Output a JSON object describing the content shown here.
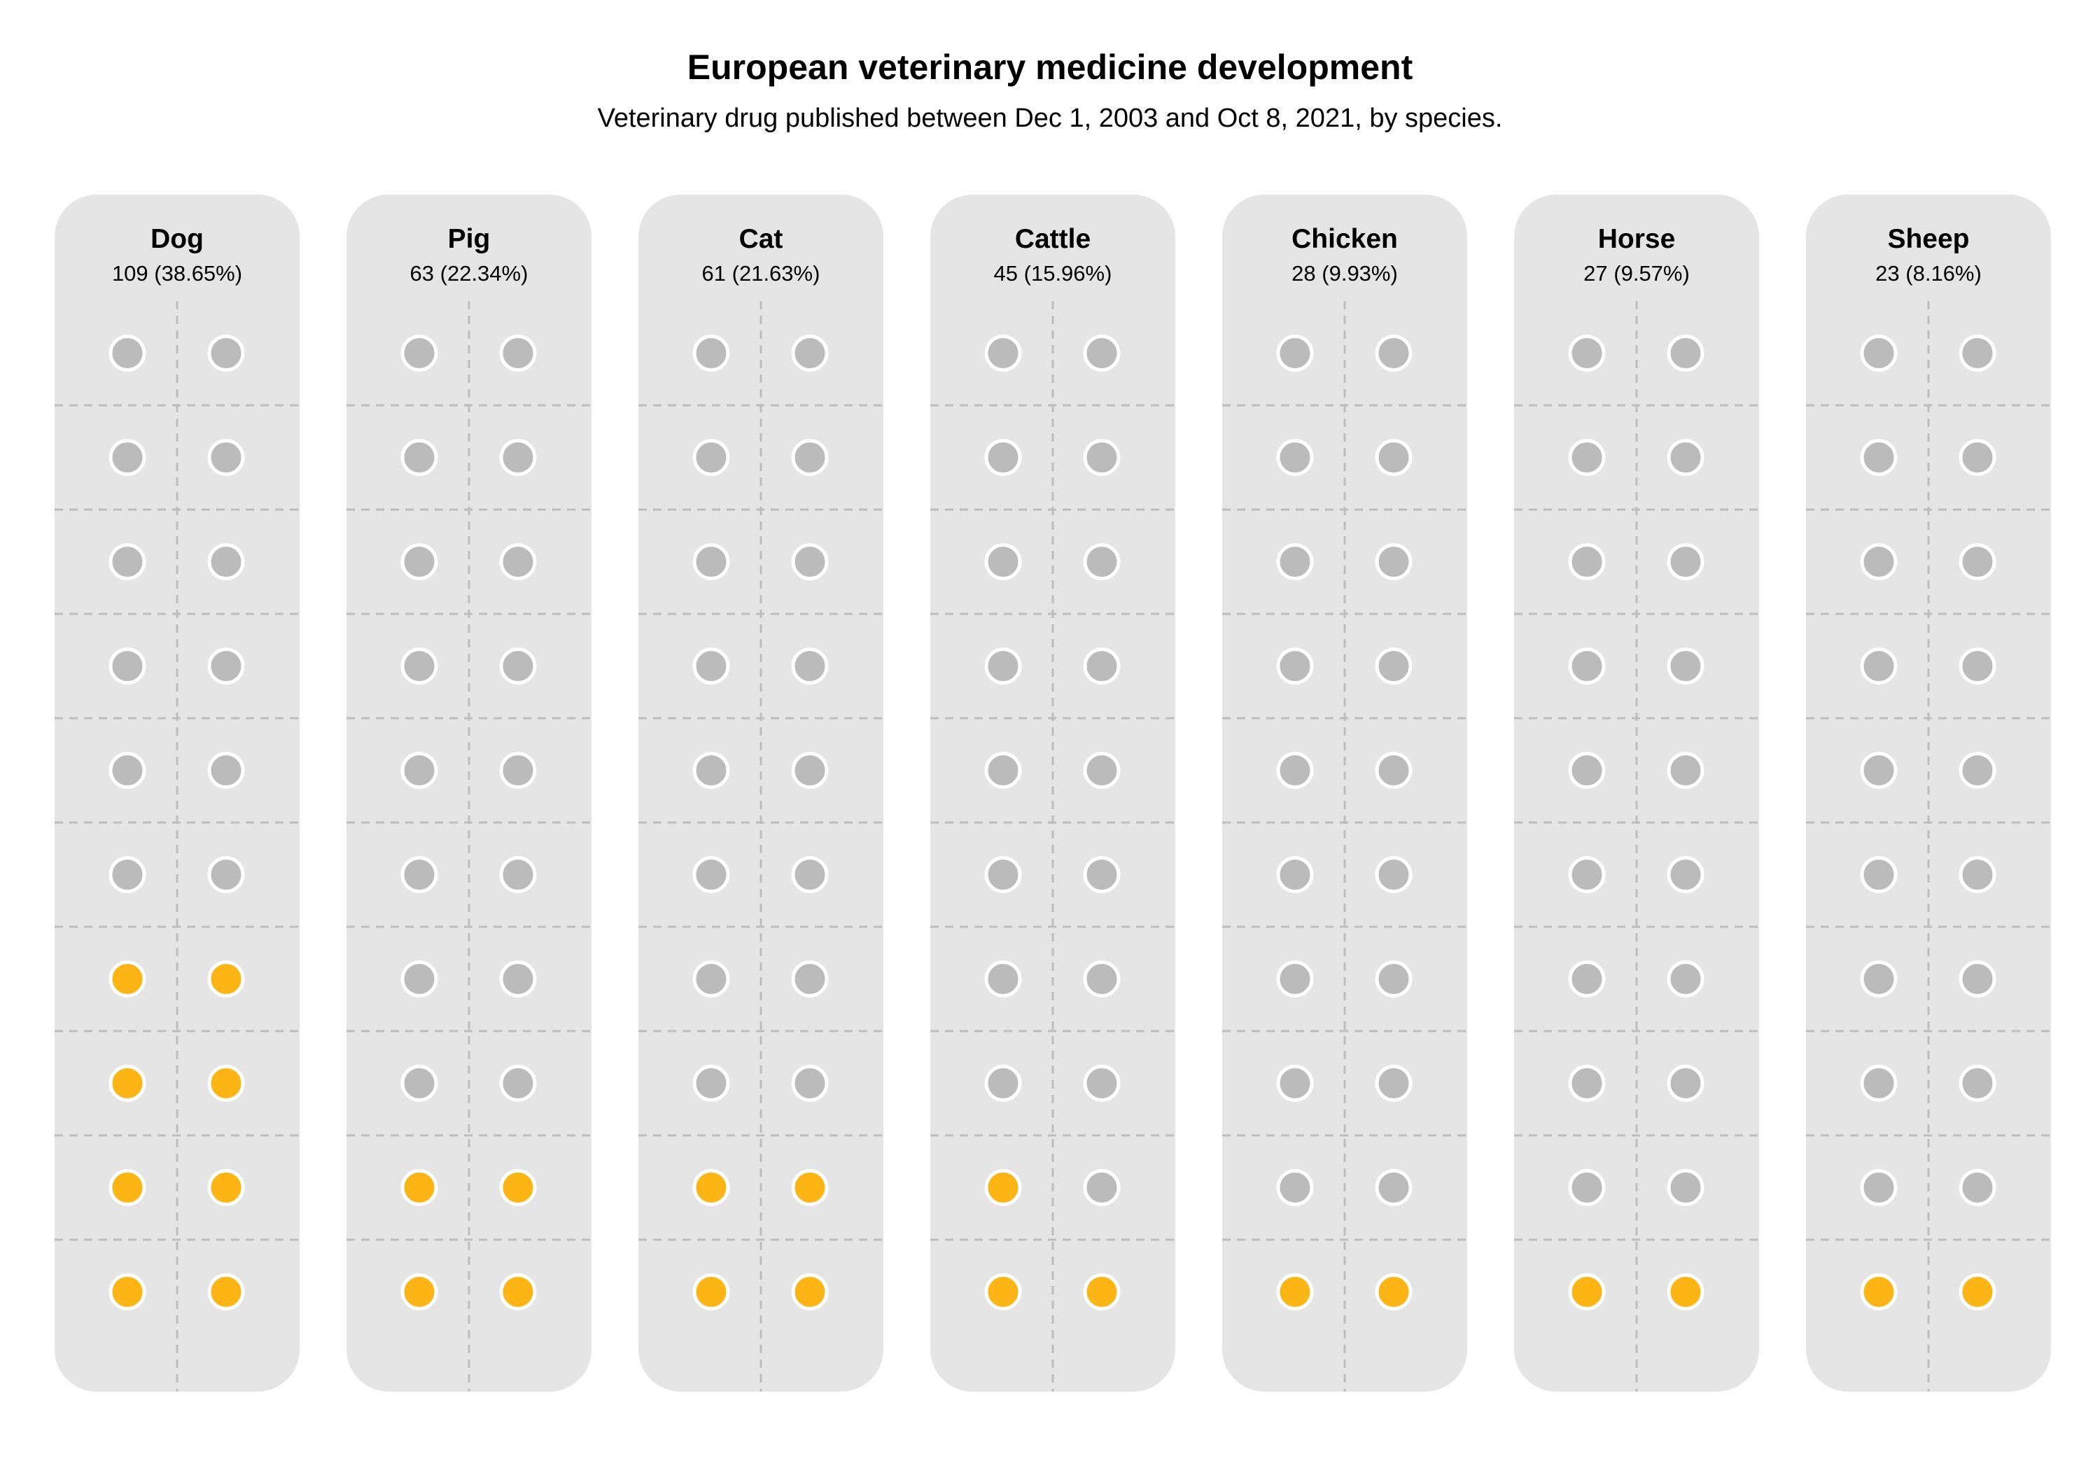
{
  "title": "European veterinary medicine development",
  "subtitle": "Veterinary drug published between Dec 1, 2003 and Oct 8, 2021, by species.",
  "colors": {
    "panel_bg": "#e5e5e5",
    "highlight": "#FDB515",
    "base": "#bbbbbb",
    "grid": "#bdbdbd"
  },
  "chart_data": {
    "type": "waffle",
    "title": "European veterinary medicine development",
    "subtitle": "Veterinary drug published between Dec 1, 2003 and Oct 8, 2021, by species.",
    "grid": {
      "rows": 10,
      "cols": 2,
      "total_dots": 20
    },
    "series": [
      {
        "name": "Dog",
        "count_label": "109 (38.65%)",
        "count": 109,
        "percent": 38.65,
        "highlighted_dots": 8
      },
      {
        "name": "Pig",
        "count_label": "63 (22.34%)",
        "count": 63,
        "percent": 22.34,
        "highlighted_dots": 4
      },
      {
        "name": "Cat",
        "count_label": "61 (21.63%)",
        "count": 61,
        "percent": 21.63,
        "highlighted_dots": 4
      },
      {
        "name": "Cattle",
        "count_label": "45 (15.96%)",
        "count": 45,
        "percent": 15.96,
        "highlighted_dots": 3
      },
      {
        "name": "Chicken",
        "count_label": "28 (9.93%)",
        "count": 28,
        "percent": 9.93,
        "highlighted_dots": 2
      },
      {
        "name": "Horse",
        "count_label": "27 (9.57%)",
        "count": 27,
        "percent": 9.57,
        "highlighted_dots": 2
      },
      {
        "name": "Sheep",
        "count_label": "23 (8.16%)",
        "count": 23,
        "percent": 8.16,
        "highlighted_dots": 2
      }
    ]
  }
}
